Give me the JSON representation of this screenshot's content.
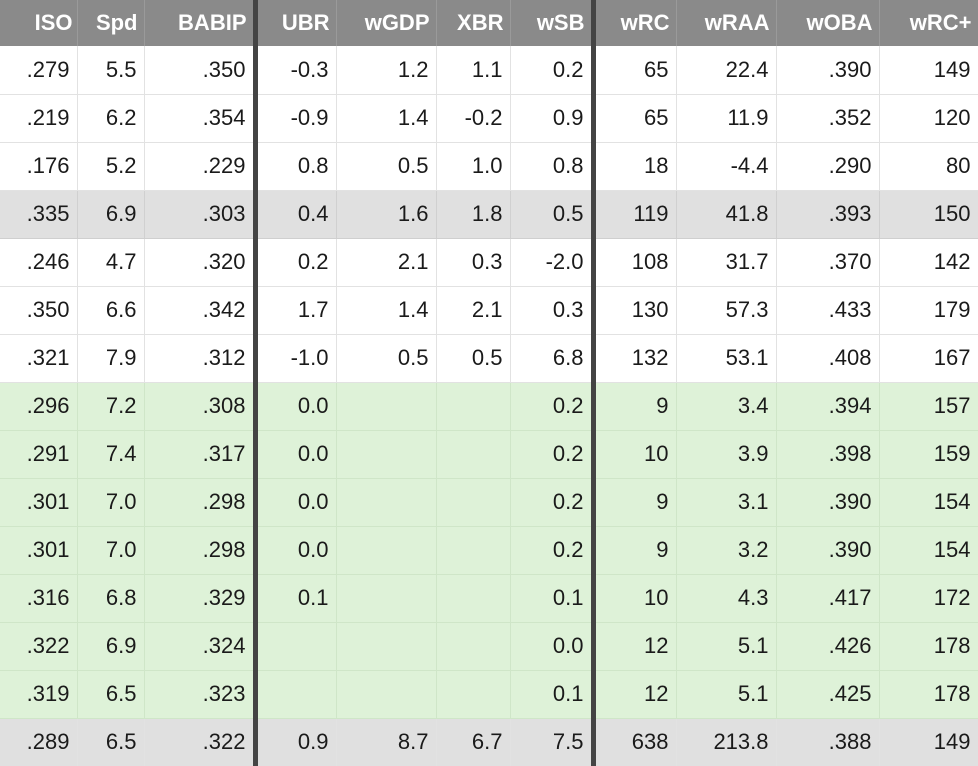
{
  "columns": [
    "ISO",
    "Spd",
    "BABIP",
    "UBR",
    "wGDP",
    "XBR",
    "wSB",
    "wRC",
    "wRAA",
    "wOBA",
    "wRC+"
  ],
  "rows": [
    {
      "style": "white",
      "cells": [
        ".279",
        "5.5",
        ".350",
        "-0.3",
        "1.2",
        "1.1",
        "0.2",
        "65",
        "22.4",
        ".390",
        "149"
      ]
    },
    {
      "style": "white",
      "cells": [
        ".219",
        "6.2",
        ".354",
        "-0.9",
        "1.4",
        "-0.2",
        "0.9",
        "65",
        "11.9",
        ".352",
        "120"
      ]
    },
    {
      "style": "white",
      "cells": [
        ".176",
        "5.2",
        ".229",
        "0.8",
        "0.5",
        "1.0",
        "0.8",
        "18",
        "-4.4",
        ".290",
        "80"
      ]
    },
    {
      "style": "gray",
      "cells": [
        ".335",
        "6.9",
        ".303",
        "0.4",
        "1.6",
        "1.8",
        "0.5",
        "119",
        "41.8",
        ".393",
        "150"
      ]
    },
    {
      "style": "white",
      "cells": [
        ".246",
        "4.7",
        ".320",
        "0.2",
        "2.1",
        "0.3",
        "-2.0",
        "108",
        "31.7",
        ".370",
        "142"
      ]
    },
    {
      "style": "white",
      "cells": [
        ".350",
        "6.6",
        ".342",
        "1.7",
        "1.4",
        "2.1",
        "0.3",
        "130",
        "57.3",
        ".433",
        "179"
      ]
    },
    {
      "style": "white",
      "cells": [
        ".321",
        "7.9",
        ".312",
        "-1.0",
        "0.5",
        "0.5",
        "6.8",
        "132",
        "53.1",
        ".408",
        "167"
      ]
    },
    {
      "style": "green",
      "cells": [
        ".296",
        "7.2",
        ".308",
        "0.0",
        "",
        "",
        "0.2",
        "9",
        "3.4",
        ".394",
        "157"
      ]
    },
    {
      "style": "green",
      "cells": [
        ".291",
        "7.4",
        ".317",
        "0.0",
        "",
        "",
        "0.2",
        "10",
        "3.9",
        ".398",
        "159"
      ]
    },
    {
      "style": "green",
      "cells": [
        ".301",
        "7.0",
        ".298",
        "0.0",
        "",
        "",
        "0.2",
        "9",
        "3.1",
        ".390",
        "154"
      ]
    },
    {
      "style": "green",
      "cells": [
        ".301",
        "7.0",
        ".298",
        "0.0",
        "",
        "",
        "0.2",
        "9",
        "3.2",
        ".390",
        "154"
      ]
    },
    {
      "style": "green",
      "cells": [
        ".316",
        "6.8",
        ".329",
        "0.1",
        "",
        "",
        "0.1",
        "10",
        "4.3",
        ".417",
        "172"
      ]
    },
    {
      "style": "green",
      "cells": [
        ".322",
        "6.9",
        ".324",
        "",
        "",
        "",
        "0.0",
        "12",
        "5.1",
        ".426",
        "178"
      ]
    },
    {
      "style": "green",
      "cells": [
        ".319",
        "6.5",
        ".323",
        "",
        "",
        "",
        "0.1",
        "12",
        "5.1",
        ".425",
        "178"
      ]
    },
    {
      "style": "total",
      "cells": [
        ".289",
        "6.5",
        ".322",
        "0.9",
        "8.7",
        "6.7",
        "7.5",
        "638",
        "213.8",
        ".388",
        "149"
      ]
    }
  ]
}
